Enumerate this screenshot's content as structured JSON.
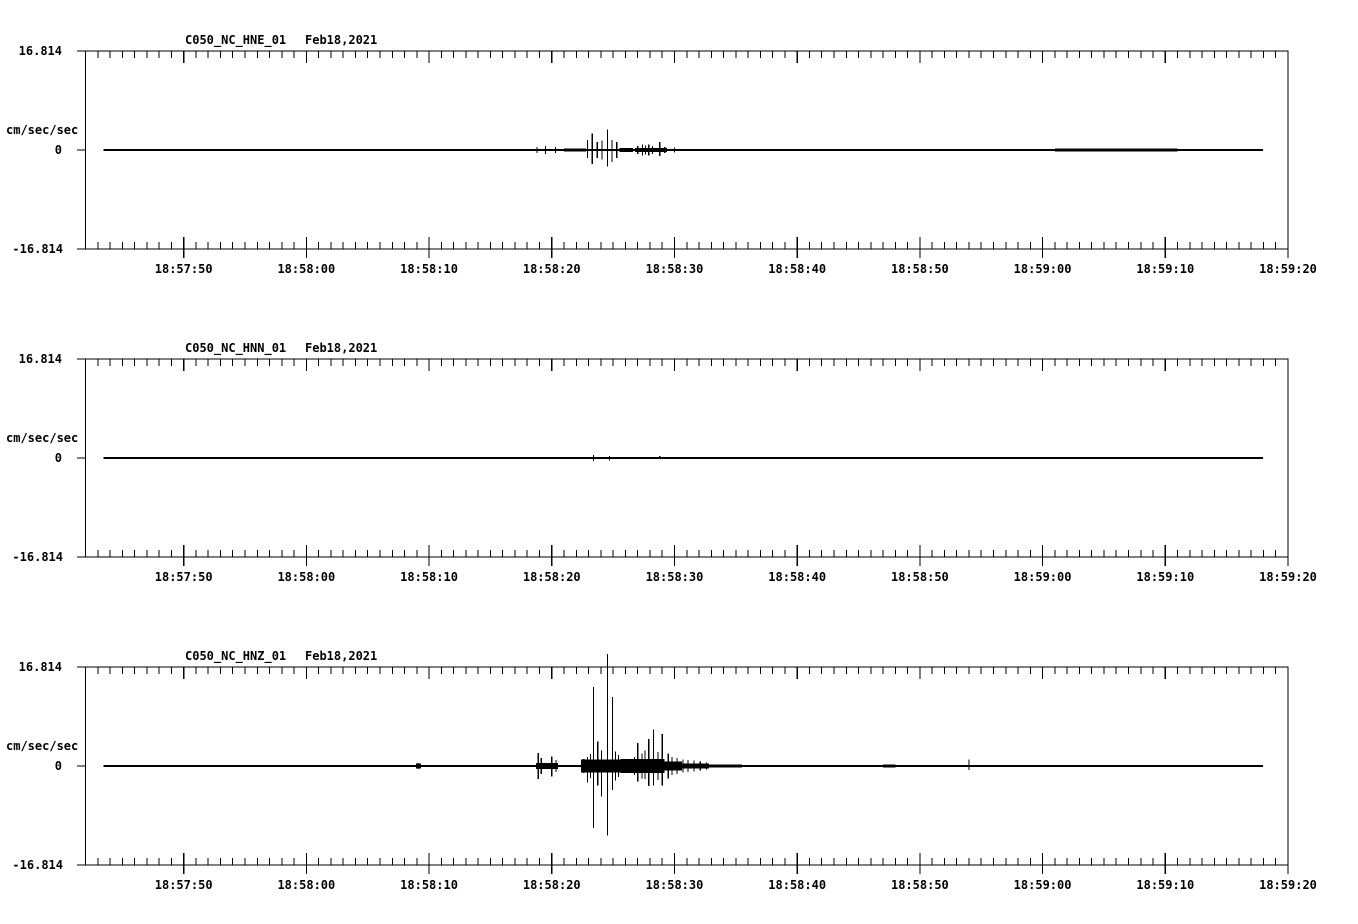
{
  "page": {
    "background": "#ffffff",
    "ink": "#000000",
    "description": "Three stacked seismogram traces for station C050 (NC network), channels HNE, HNN, HNZ"
  },
  "chart_data": [
    {
      "type": "line",
      "title": "C050_NC_HNE_01",
      "date_label": "Feb18,2021",
      "ylabel": "cm/sec/sec",
      "ylim": [
        -16.814,
        16.814
      ],
      "yticks": [
        "16.814",
        "0",
        "-16.814"
      ],
      "x_window_seconds": 98,
      "x_minor_tick_seconds": 1,
      "x_ticks": [
        {
          "t": 8,
          "label": "18:57:50"
        },
        {
          "t": 18,
          "label": "18:58:00"
        },
        {
          "t": 28,
          "label": "18:58:10"
        },
        {
          "t": 38,
          "label": "18:58:20"
        },
        {
          "t": 48,
          "label": "18:58:30"
        },
        {
          "t": 58,
          "label": "18:58:40"
        },
        {
          "t": 68,
          "label": "18:58:50"
        },
        {
          "t": 78,
          "label": "18:59:00"
        },
        {
          "t": 88,
          "label": "18:59:10"
        },
        {
          "t": 98,
          "label": "18:59:20"
        }
      ],
      "trace": {
        "t_start": 1.45,
        "t_end": 95.95,
        "spikes": [
          [
            36.8,
            0.5,
            0.5
          ],
          [
            37.5,
            0.7,
            0.7
          ],
          [
            38.3,
            0.5,
            0.5
          ],
          [
            40.9,
            1.7,
            1.4
          ],
          [
            41.3,
            2.8,
            2.4
          ],
          [
            41.7,
            1.4,
            1.4
          ],
          [
            42.1,
            1.6,
            1.6
          ],
          [
            42.55,
            3.5,
            2.8
          ],
          [
            42.9,
            1.7,
            2.0
          ],
          [
            43.3,
            1.4,
            1.4
          ],
          [
            45.0,
            0.7,
            0.7
          ],
          [
            45.4,
            0.9,
            0.9
          ],
          [
            45.65,
            0.8,
            0.8
          ],
          [
            45.9,
            0.9,
            0.9
          ],
          [
            46.2,
            0.7,
            0.7
          ],
          [
            46.8,
            1.4,
            1.0
          ],
          [
            47.2,
            0.5,
            0.5
          ],
          [
            48.0,
            0.4,
            0.4
          ]
        ],
        "noise_bands": [
          [
            15.0,
            16.0,
            0.12
          ],
          [
            28.0,
            28.6,
            0.12
          ],
          [
            39.0,
            40.8,
            0.25
          ],
          [
            43.5,
            44.6,
            0.3
          ],
          [
            44.8,
            47.4,
            0.3
          ],
          [
            60.0,
            62.0,
            0.18
          ],
          [
            62.5,
            69.0,
            0.18
          ],
          [
            79.0,
            89.0,
            0.25
          ],
          [
            90.5,
            91.5,
            0.18
          ]
        ]
      }
    },
    {
      "type": "line",
      "title": "C050_NC_HNN_01",
      "date_label": "Feb18,2021",
      "ylabel": "cm/sec/sec",
      "ylim": [
        -16.814,
        16.814
      ],
      "yticks": [
        "16.814",
        "0",
        "-16.814"
      ],
      "x_window_seconds": 98,
      "x_minor_tick_seconds": 1,
      "x_ticks": [
        {
          "t": 8,
          "label": "18:57:50"
        },
        {
          "t": 18,
          "label": "18:58:00"
        },
        {
          "t": 28,
          "label": "18:58:10"
        },
        {
          "t": 38,
          "label": "18:58:20"
        },
        {
          "t": 48,
          "label": "18:58:30"
        },
        {
          "t": 58,
          "label": "18:58:40"
        },
        {
          "t": 68,
          "label": "18:58:50"
        },
        {
          "t": 78,
          "label": "18:59:00"
        },
        {
          "t": 88,
          "label": "18:59:10"
        },
        {
          "t": 98,
          "label": "18:59:20"
        }
      ],
      "trace": {
        "t_start": 1.45,
        "t_end": 95.95,
        "spikes": [
          [
            41.4,
            0.5,
            0.5
          ],
          [
            42.7,
            0.3,
            0.4
          ],
          [
            45.4,
            0.2,
            0.2
          ],
          [
            46.8,
            0.3,
            0.2
          ],
          [
            73.5,
            0.2,
            0.2
          ]
        ],
        "noise_bands": [
          [
            58.0,
            59.0,
            0.1
          ]
        ]
      }
    },
    {
      "type": "line",
      "title": "C050_NC_HNZ_01",
      "date_label": "Feb18,2021",
      "ylabel": "cm/sec/sec",
      "ylim": [
        -16.814,
        16.814
      ],
      "yticks": [
        "16.814",
        "0",
        "-16.814"
      ],
      "x_window_seconds": 98,
      "x_minor_tick_seconds": 1,
      "x_ticks": [
        {
          "t": 8,
          "label": "18:57:50"
        },
        {
          "t": 18,
          "label": "18:58:00"
        },
        {
          "t": 28,
          "label": "18:58:10"
        },
        {
          "t": 38,
          "label": "18:58:20"
        },
        {
          "t": 48,
          "label": "18:58:30"
        },
        {
          "t": 58,
          "label": "18:58:40"
        },
        {
          "t": 68,
          "label": "18:58:50"
        },
        {
          "t": 78,
          "label": "18:59:00"
        },
        {
          "t": 88,
          "label": "18:59:10"
        },
        {
          "t": 98,
          "label": "18:59:20"
        }
      ],
      "trace": {
        "t_start": 1.45,
        "t_end": 95.95,
        "spikes": [
          [
            27.1,
            0.5,
            0.5
          ],
          [
            36.9,
            2.2,
            2.2
          ],
          [
            37.15,
            1.4,
            1.4
          ],
          [
            38.0,
            1.6,
            1.8
          ],
          [
            38.35,
            1.0,
            1.0
          ],
          [
            40.6,
            1.2,
            1.2
          ],
          [
            40.9,
            1.5,
            2.8
          ],
          [
            41.15,
            2.0,
            2.0
          ],
          [
            41.4,
            13.4,
            10.5
          ],
          [
            41.75,
            4.2,
            3.3
          ],
          [
            42.05,
            2.6,
            5.2
          ],
          [
            42.55,
            19.0,
            11.8
          ],
          [
            42.95,
            11.7,
            4.1
          ],
          [
            43.2,
            2.5,
            2.5
          ],
          [
            43.45,
            1.9,
            1.9
          ],
          [
            44.4,
            1.1,
            1.1
          ],
          [
            44.75,
            1.5,
            1.5
          ],
          [
            45.0,
            3.9,
            2.6
          ],
          [
            45.35,
            2.1,
            2.1
          ],
          [
            45.6,
            2.6,
            2.2
          ],
          [
            45.9,
            4.6,
            3.4
          ],
          [
            46.3,
            6.2,
            3.3
          ],
          [
            46.65,
            2.4,
            2.4
          ],
          [
            47.0,
            5.4,
            3.3
          ],
          [
            47.5,
            2.1,
            2.1
          ],
          [
            47.8,
            1.5,
            1.5
          ],
          [
            48.2,
            1.4,
            1.4
          ],
          [
            48.7,
            1.1,
            1.1
          ],
          [
            49.1,
            1.0,
            1.0
          ],
          [
            49.6,
            0.9,
            0.9
          ],
          [
            50.1,
            0.8,
            0.8
          ],
          [
            50.6,
            0.6,
            0.6
          ],
          [
            72.0,
            1.1,
            0.7
          ]
        ],
        "noise_bands": [
          [
            26.95,
            27.35,
            0.45
          ],
          [
            36.7,
            38.5,
            0.5
          ],
          [
            40.4,
            43.6,
            1.1
          ],
          [
            43.6,
            47.2,
            1.2
          ],
          [
            47.2,
            48.6,
            0.8
          ],
          [
            48.6,
            50.8,
            0.45
          ],
          [
            50.8,
            53.5,
            0.28
          ],
          [
            55.0,
            56.0,
            0.2
          ],
          [
            60.5,
            61.5,
            0.2
          ],
          [
            65.0,
            66.0,
            0.22
          ],
          [
            74.0,
            75.0,
            0.2
          ]
        ]
      }
    }
  ]
}
